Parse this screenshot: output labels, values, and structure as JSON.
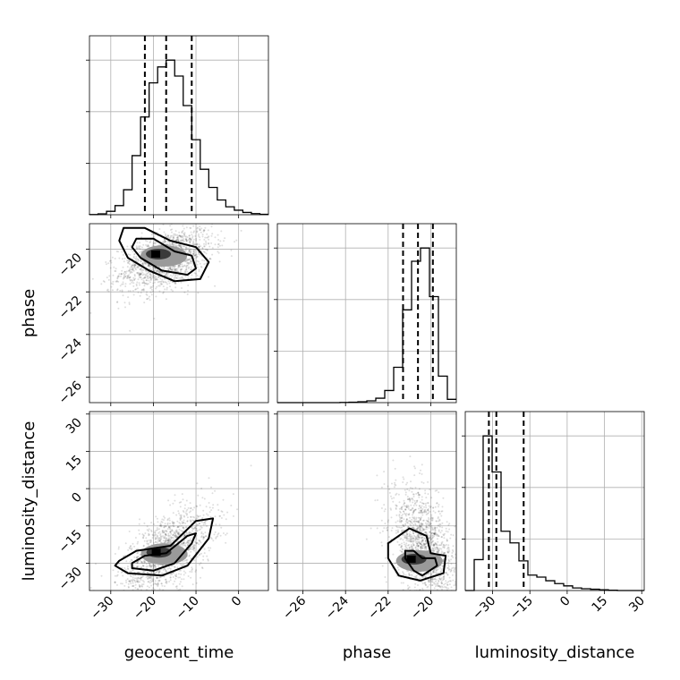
{
  "chart_data": {
    "type": "corner",
    "parameters": [
      "geocent_time",
      "phase",
      "luminosity_distance"
    ],
    "axes": {
      "geocent_time": {
        "label": "geocent_time",
        "range": [
          -35,
          7
        ],
        "ticks": [
          -30,
          -20,
          -10,
          0
        ],
        "tick_labels": [
          "−30",
          "−20",
          "−10",
          "0"
        ]
      },
      "phase": {
        "label": "phase",
        "range": [
          -27.2,
          -18.8
        ],
        "ticks": [
          -26,
          -24,
          -22,
          -20
        ],
        "tick_labels": [
          "−26",
          "−24",
          "−22",
          "−20"
        ]
      },
      "luminosity_distance": {
        "label": "luminosity_distance",
        "range": [
          -41,
          31
        ],
        "ticks": [
          -30,
          -15,
          0,
          15,
          30
        ],
        "tick_labels": [
          "−30",
          "−15",
          "0",
          "15",
          "30"
        ]
      }
    },
    "grid": true,
    "histograms": [
      {
        "parameter": "geocent_time",
        "bin_edges": [
          -35,
          -33,
          -31,
          -29,
          -27,
          -25,
          -23,
          -21,
          -19,
          -17,
          -15,
          -13,
          -11,
          -9,
          -7,
          -5,
          -3,
          -1,
          1,
          3,
          5,
          7
        ],
        "counts": [
          1,
          4,
          15,
          40,
          110,
          260,
          430,
          580,
          650,
          680,
          610,
          480,
          330,
          200,
          120,
          65,
          35,
          20,
          10,
          5,
          2
        ],
        "quantiles": [
          -22,
          -17,
          -11
        ]
      },
      {
        "parameter": "phase",
        "bin_edges": [
          -27.2,
          -26.78,
          -26.36,
          -25.94,
          -25.52,
          -25.1,
          -24.68,
          -24.26,
          -23.84,
          -23.42,
          -23.0,
          -22.58,
          -22.16,
          -21.74,
          -21.32,
          -20.9,
          -20.48,
          -20.06,
          -19.64,
          -19.22,
          -18.8
        ],
        "counts": [
          0,
          0,
          0,
          0,
          0,
          0,
          0,
          1,
          2,
          4,
          8,
          20,
          55,
          160,
          420,
          640,
          700,
          480,
          120,
          15
        ],
        "quantiles": [
          -21.3,
          -20.6,
          -19.9
        ]
      },
      {
        "parameter": "luminosity_distance",
        "bin_edges": [
          -41,
          -37.4,
          -33.8,
          -30.2,
          -26.6,
          -23.0,
          -19.4,
          -15.8,
          -12.2,
          -8.6,
          -5.0,
          -1.4,
          2.2,
          5.8,
          9.4,
          13.0,
          16.6,
          20.2,
          23.8,
          27.4,
          31
        ],
        "counts": [
          0,
          120,
          600,
          460,
          230,
          185,
          115,
          60,
          52,
          38,
          27,
          18,
          10,
          7,
          5,
          3,
          1,
          0,
          0,
          0
        ],
        "quantiles": [
          -31.5,
          -28.5,
          -17.5
        ]
      }
    ],
    "joint_panels": [
      {
        "x": "geocent_time",
        "y": "phase",
        "mean": [
          -17,
          -20.5
        ],
        "std": [
          5.5,
          0.75
        ],
        "corr": 0.45,
        "contours": [
          [
            [
              -24,
              -19.5
            ],
            [
              -20,
              -19.5
            ],
            [
              -15,
              -20.1
            ],
            [
              -11,
              -20.3
            ],
            [
              -10,
              -20.9
            ],
            [
              -12,
              -21.2
            ],
            [
              -18,
              -21.0
            ],
            [
              -23,
              -20.4
            ],
            [
              -25,
              -19.9
            ]
          ],
          [
            [
              -27,
              -19.0
            ],
            [
              -22,
              -19.0
            ],
            [
              -16,
              -19.6
            ],
            [
              -10,
              -19.9
            ],
            [
              -7,
              -20.6
            ],
            [
              -9,
              -21.4
            ],
            [
              -15,
              -21.5
            ],
            [
              -21,
              -21.0
            ],
            [
              -26,
              -20.4
            ],
            [
              -28,
              -19.6
            ]
          ]
        ]
      },
      {
        "x": "geocent_time",
        "y": "luminosity_distance",
        "mean": [
          -17,
          -26
        ],
        "std": [
          5.5,
          9
        ],
        "corr": 0.6,
        "contours": [
          [
            [
              -25,
              -30
            ],
            [
              -22,
              -27
            ],
            [
              -17,
              -26
            ],
            [
              -12,
              -19
            ],
            [
              -10,
              -18
            ],
            [
              -11,
              -22
            ],
            [
              -15,
              -30
            ],
            [
              -20,
              -33
            ],
            [
              -25,
              -32
            ]
          ],
          [
            [
              -28,
              -29
            ],
            [
              -24,
              -25
            ],
            [
              -16,
              -23
            ],
            [
              -10,
              -13
            ],
            [
              -6,
              -12
            ],
            [
              -7,
              -20
            ],
            [
              -12,
              -31
            ],
            [
              -18,
              -35
            ],
            [
              -26,
              -34
            ],
            [
              -29,
              -31
            ]
          ]
        ]
      },
      {
        "x": "phase",
        "y": "luminosity_distance",
        "mean": [
          -20.3,
          -24
        ],
        "std": [
          0.75,
          12
        ],
        "corr": -0.45,
        "contours": [
          [
            [
              -21.2,
              -25
            ],
            [
              -20.8,
              -25
            ],
            [
              -20.4,
              -28
            ],
            [
              -19.8,
              -28
            ],
            [
              -19.7,
              -31
            ],
            [
              -20.4,
              -35
            ],
            [
              -20.8,
              -33
            ],
            [
              -21.2,
              -28
            ]
          ],
          [
            [
              -22.0,
              -22
            ],
            [
              -21.0,
              -16
            ],
            [
              -20.2,
              -19
            ],
            [
              -20.0,
              -26
            ],
            [
              -19.3,
              -27
            ],
            [
              -19.4,
              -34
            ],
            [
              -20.5,
              -37
            ],
            [
              -21.5,
              -35
            ],
            [
              -22.0,
              -28
            ]
          ]
        ]
      }
    ]
  }
}
